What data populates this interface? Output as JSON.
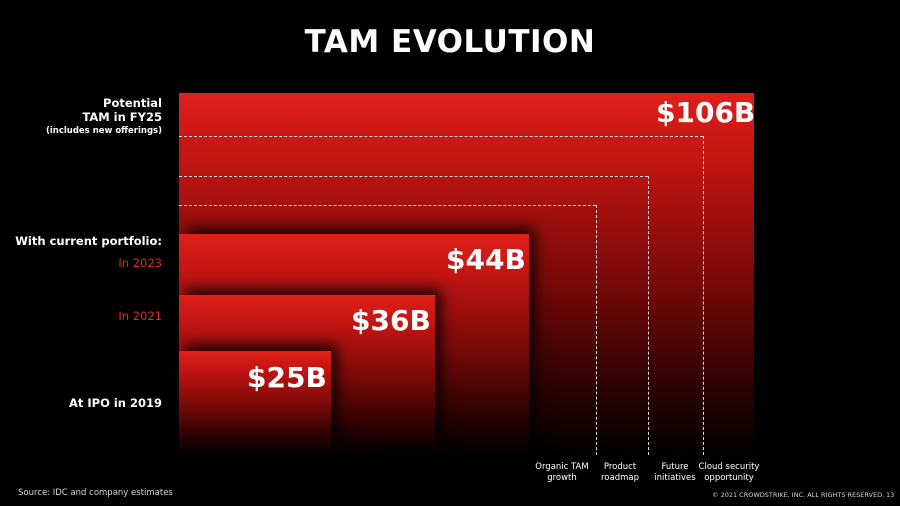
{
  "title": "TAM EVOLUTION",
  "left_labels": {
    "potential_line1": "Potential",
    "potential_line2": "TAM in FY25",
    "potential_note": "(includes new offerings)",
    "current_portfolio": "With current portfolio:",
    "in_2023": "In 2023",
    "in_2021": "In 2021",
    "at_ipo": "At IPO in 2019"
  },
  "bottom_labels": {
    "organic_1": "Organic TAM",
    "organic_2": "growth",
    "roadmap_1": "Product",
    "roadmap_2": "roadmap",
    "future_1": "Future",
    "future_2": "initiatives",
    "cloud_1": "Cloud security",
    "cloud_2": "opportunity"
  },
  "footer": {
    "source": "Source: IDC and company estimates",
    "copyright": "© 2021 CROWDSTRIKE, INC. ALL RIGHTS RESERVED.",
    "page": "13"
  },
  "colors": {
    "accent_red": "#e32521",
    "background": "#000000"
  },
  "chart_data": {
    "type": "bar",
    "categories": [
      "At IPO in 2019",
      "In 2021",
      "In 2023",
      "Potential TAM in FY25"
    ],
    "values": [
      25,
      36,
      44,
      106
    ],
    "value_labels": [
      "$25B",
      "$36B",
      "$44B",
      "$106B"
    ],
    "unit": "$B",
    "nested_steps": [
      "Organic TAM growth",
      "Product roadmap",
      "Future initiatives",
      "Cloud security opportunity"
    ]
  }
}
